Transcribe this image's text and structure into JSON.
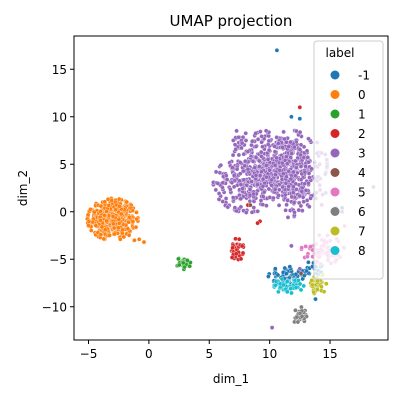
{
  "chart_data": {
    "type": "scatter",
    "title": "UMAP projection",
    "xlabel": "dim_1",
    "ylabel": "dim_2",
    "xlim": [
      -6.2,
      19.8
    ],
    "ylim": [
      -13.5,
      18.5
    ],
    "xticks": [
      -5,
      0,
      5,
      10,
      15
    ],
    "yticks": [
      -10,
      -5,
      0,
      5,
      10,
      15
    ],
    "grid": false,
    "legend": {
      "title": "label",
      "position": "upper right",
      "entries": [
        "-1",
        "0",
        "1",
        "2",
        "3",
        "4",
        "5",
        "6",
        "7",
        "8"
      ]
    },
    "series": [
      {
        "name": "-1",
        "color": "#1f77b4",
        "clusters": [
          {
            "cx": 11.8,
            "cy": -6.8,
            "sx": 1.0,
            "sy": 0.6,
            "n": 60
          },
          {
            "cx": 13.6,
            "cy": -6.0,
            "sx": 0.5,
            "sy": 0.5,
            "n": 20
          }
        ],
        "outliers": [
          [
            10.6,
            17.0
          ],
          [
            11.8,
            10.0
          ],
          [
            12.5,
            9.8
          ],
          [
            16.0,
            0.4
          ],
          [
            13.8,
            -9.2
          ],
          [
            10.0,
            5.0
          ]
        ]
      },
      {
        "name": "0",
        "color": "#ff7f0e",
        "clusters": [
          {
            "cx": -3.0,
            "cy": -0.8,
            "sx": 0.95,
            "sy": 1.0,
            "n": 420
          }
        ],
        "outliers": [
          [
            -0.4,
            -3.2
          ],
          [
            -0.8,
            -2.9
          ],
          [
            -1.2,
            -3.0
          ],
          [
            6.2,
            4.0
          ],
          [
            8.3,
            0.7
          ]
        ]
      },
      {
        "name": "1",
        "color": "#2ca02c",
        "clusters": [
          {
            "cx": 2.9,
            "cy": -5.4,
            "sx": 0.28,
            "sy": 0.3,
            "n": 35
          }
        ],
        "outliers": []
      },
      {
        "name": "2",
        "color": "#d62728",
        "clusters": [
          {
            "cx": 7.3,
            "cy": -4.0,
            "sx": 0.25,
            "sy": 0.55,
            "n": 35
          }
        ],
        "outliers": [
          [
            9.2,
            -1.0
          ],
          [
            9.0,
            -1.2
          ],
          [
            8.2,
            0.7
          ],
          [
            12.5,
            11.0
          ]
        ]
      },
      {
        "name": "3",
        "color": "#9467bd",
        "clusters": [
          {
            "cx": 10.8,
            "cy": 5.0,
            "sx": 1.8,
            "sy": 1.7,
            "n": 520
          },
          {
            "cx": 8.2,
            "cy": 3.0,
            "sx": 1.3,
            "sy": 1.4,
            "n": 220
          },
          {
            "cx": 12.0,
            "cy": 2.0,
            "sx": 1.2,
            "sy": 1.2,
            "n": 120
          },
          {
            "cx": 7.6,
            "cy": 7.6,
            "sx": 0.3,
            "sy": 0.6,
            "n": 20
          }
        ],
        "outliers": [
          [
            10.2,
            -12.2
          ],
          [
            11.8,
            -3.6
          ],
          [
            12.5,
            -6.0
          ],
          [
            16.0,
            0.0
          ],
          [
            6.4,
            3.8
          ]
        ]
      },
      {
        "name": "4",
        "color": "#8c564b",
        "clusters": [],
        "outliers": [
          [
            8.4,
            0.7
          ],
          [
            12.6,
            -6.5
          ]
        ]
      },
      {
        "name": "5",
        "color": "#e377c2",
        "clusters": [
          {
            "cx": 14.4,
            "cy": -4.0,
            "sx": 0.8,
            "sy": 0.7,
            "n": 70
          }
        ],
        "outliers": [
          [
            15.5,
            0.4
          ],
          [
            16.2,
            -1.5
          ]
        ]
      },
      {
        "name": "6",
        "color": "#7f7f7f",
        "clusters": [
          {
            "cx": 12.5,
            "cy": -11.0,
            "sx": 0.25,
            "sy": 0.45,
            "n": 35
          }
        ],
        "outliers": [
          [
            18.6,
            2.6
          ]
        ]
      },
      {
        "name": "7",
        "color": "#bcbd22",
        "clusters": [
          {
            "cx": 14.0,
            "cy": -7.6,
            "sx": 0.35,
            "sy": 0.5,
            "n": 45
          }
        ],
        "outliers": []
      },
      {
        "name": "8",
        "color": "#17becf",
        "clusters": [
          {
            "cx": 11.5,
            "cy": -7.8,
            "sx": 0.6,
            "sy": 0.35,
            "n": 55
          }
        ],
        "outliers": []
      }
    ]
  }
}
